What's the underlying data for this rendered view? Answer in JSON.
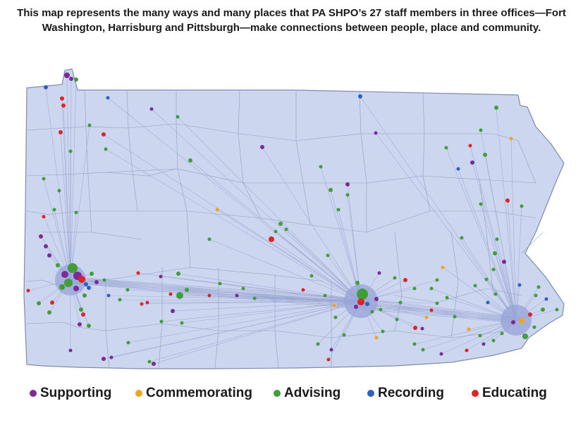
{
  "caption": "This map represents the many ways and many places that PA SHPO’s 27 staff members in three offices—Fort Washington, Harrisburg and Pittsburgh—make connections between people, place and community.",
  "colors": {
    "state_fill": "#cdd6ef",
    "county_lines": "#8f9dbd",
    "state_outline": "#7d8cb0",
    "connection_lines": "#9aa6d2",
    "office_halo": "#97a4d6",
    "supporting": "#7b2a98",
    "commemorating": "#f0a326",
    "advising": "#3f9e3a",
    "recording": "#2f5fc4",
    "educating": "#dd2426"
  },
  "legend": [
    {
      "key": "supporting",
      "label": "Supporting"
    },
    {
      "key": "commemorating",
      "label": "Commemorating"
    },
    {
      "key": "advising",
      "label": "Advising"
    },
    {
      "key": "recording",
      "label": "Recording"
    },
    {
      "key": "educating",
      "label": "Educating"
    }
  ]
}
